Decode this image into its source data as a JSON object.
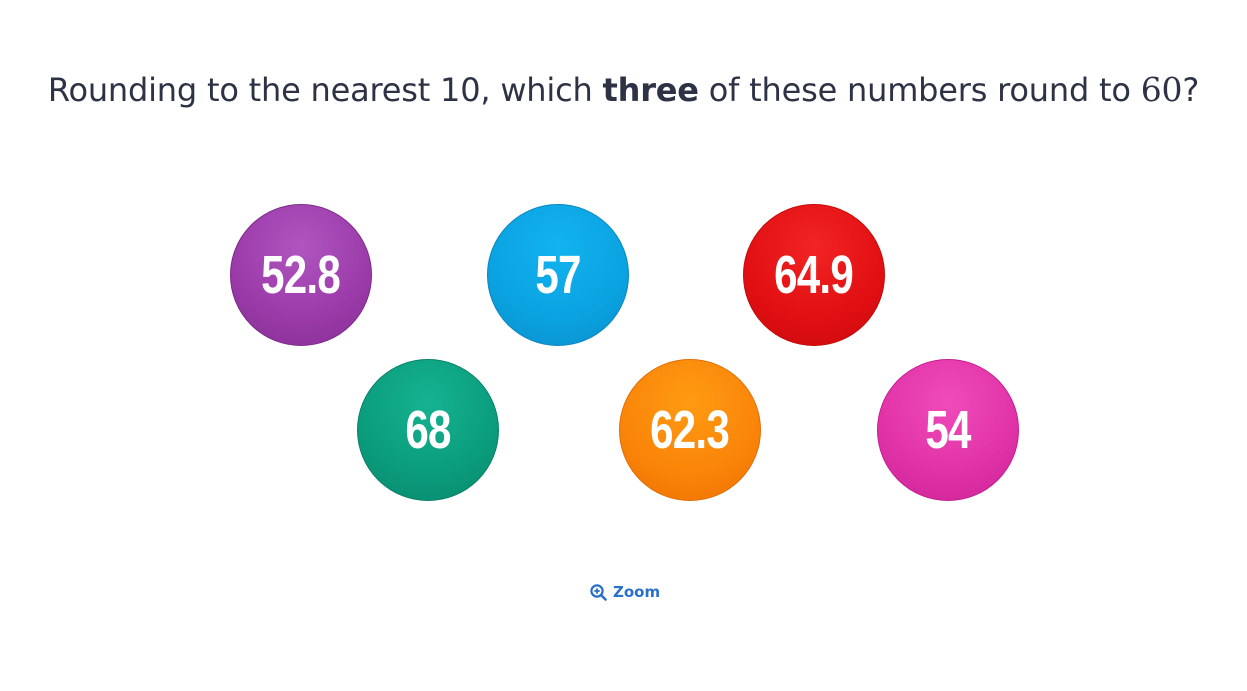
{
  "question": {
    "prefix": "Rounding to the nearest 10, which ",
    "bold": "three",
    "middle": " of these numbers round to ",
    "target": "60",
    "suffix": "?"
  },
  "balls": [
    {
      "label": "52.8",
      "color": "#9a3aa8"
    },
    {
      "label": "57",
      "color": "#0aa2e0"
    },
    {
      "label": "64.9",
      "color": "#e10f12"
    },
    {
      "label": "68",
      "color": "#0a9c7c"
    },
    {
      "label": "62.3",
      "color": "#fa8409"
    },
    {
      "label": "54",
      "color": "#e032a7"
    }
  ],
  "zoom": {
    "label": "Zoom",
    "icon": "zoom-in-icon",
    "color": "#2a6fc9"
  }
}
